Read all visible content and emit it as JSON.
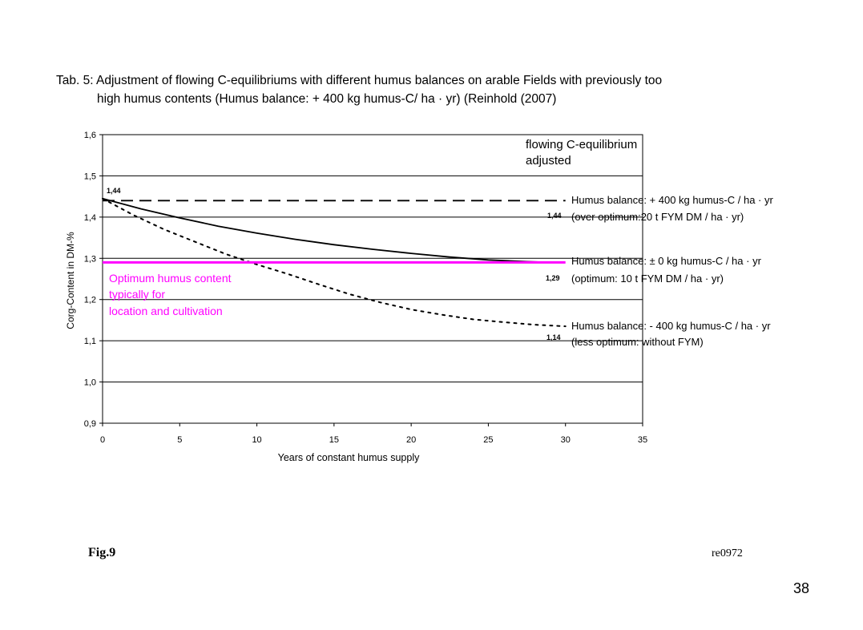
{
  "header": {
    "title_line1": "Tab. 5: Adjustment of flowing C-equilibriums with different humus balances on arable Fields with previously too",
    "title_line2": "high humus contents (Humus balance: + 400 kg humus-C/ ha · yr)",
    "title_source": " (Reinhold (2007)"
  },
  "chart_data": {
    "type": "line",
    "xlabel": "Years of constant humus supply",
    "ylabel": "Corg-Content in DM-%",
    "xlim": [
      0,
      35
    ],
    "ylim": [
      0.9,
      1.6
    ],
    "x_ticks": [
      0,
      5,
      10,
      15,
      20,
      25,
      30,
      35
    ],
    "x_tick_labels": [
      "0",
      "5",
      "10",
      "15",
      "20",
      "25",
      "30",
      "35"
    ],
    "y_ticks": [
      0.9,
      1.0,
      1.1,
      1.2,
      1.3,
      1.4,
      1.5,
      1.6
    ],
    "y_tick_labels": [
      "0,9",
      "1,0",
      "1,1",
      "1,2",
      "1,3",
      "1,4",
      "1,5",
      "1,6"
    ],
    "grid": "horizontal",
    "series": [
      {
        "name": "Humus balance: + 400 kg humus-C / ha · yr",
        "style": "dashed",
        "color": "#000000",
        "x": [
          0,
          30
        ],
        "y": [
          1.44,
          1.44
        ]
      },
      {
        "name": "Humus balance: ± 0 kg humus-C / ha · yr",
        "style": "solid",
        "color": "#000000",
        "x": [
          0,
          2.5,
          5,
          7.5,
          10,
          12.5,
          15,
          17.5,
          20,
          22.5,
          25,
          27.5,
          29
        ],
        "y": [
          1.445,
          1.42,
          1.398,
          1.378,
          1.361,
          1.346,
          1.333,
          1.322,
          1.312,
          1.303,
          1.296,
          1.292,
          1.29
        ]
      },
      {
        "name": "Humus balance: - 400 kg humus-C / ha · yr",
        "style": "dotted",
        "color": "#000000",
        "x": [
          0,
          2,
          4,
          6,
          8,
          10,
          12,
          14,
          16,
          18,
          20,
          22,
          24,
          26,
          28,
          30
        ],
        "y": [
          1.445,
          1.405,
          1.37,
          1.34,
          1.31,
          1.285,
          1.262,
          1.237,
          1.213,
          1.193,
          1.176,
          1.163,
          1.152,
          1.145,
          1.139,
          1.135
        ]
      },
      {
        "name": "Optimum humus content",
        "style": "solid",
        "color": "#ff00ff",
        "x": [
          0,
          30
        ],
        "y": [
          1.29,
          1.29
        ]
      }
    ],
    "data_labels": [
      "1,44",
      "1,44",
      "1,29",
      "1,14"
    ],
    "annotations": {
      "adjusted_line1": "flowing C-equilibrium",
      "adjusted_line2": "adjusted",
      "plus400_line1": "Humus balance: + 400 kg humus-C / ha · yr",
      "plus400_line2": "(over optimum:20 t FYM DM / ha · yr)",
      "zero_line1": "Humus balance: ± 0 kg humus-C / ha · yr",
      "zero_line2": "(optimum: 10 t FYM DM / ha · yr)",
      "minus400_line1": "Humus balance: - 400 kg humus-C / ha · yr",
      "minus400_line2": "(less optimum: without FYM)",
      "optimum_line1": "Optimum humus content",
      "optimum_line2": "typically for",
      "optimum_line3": "location and cultivation"
    }
  },
  "footer": {
    "fig_label": "Fig.9",
    "code": "re0972",
    "page_number": "38"
  },
  "colors": {
    "optimum": "#ff00ff",
    "lines": "#000000"
  }
}
